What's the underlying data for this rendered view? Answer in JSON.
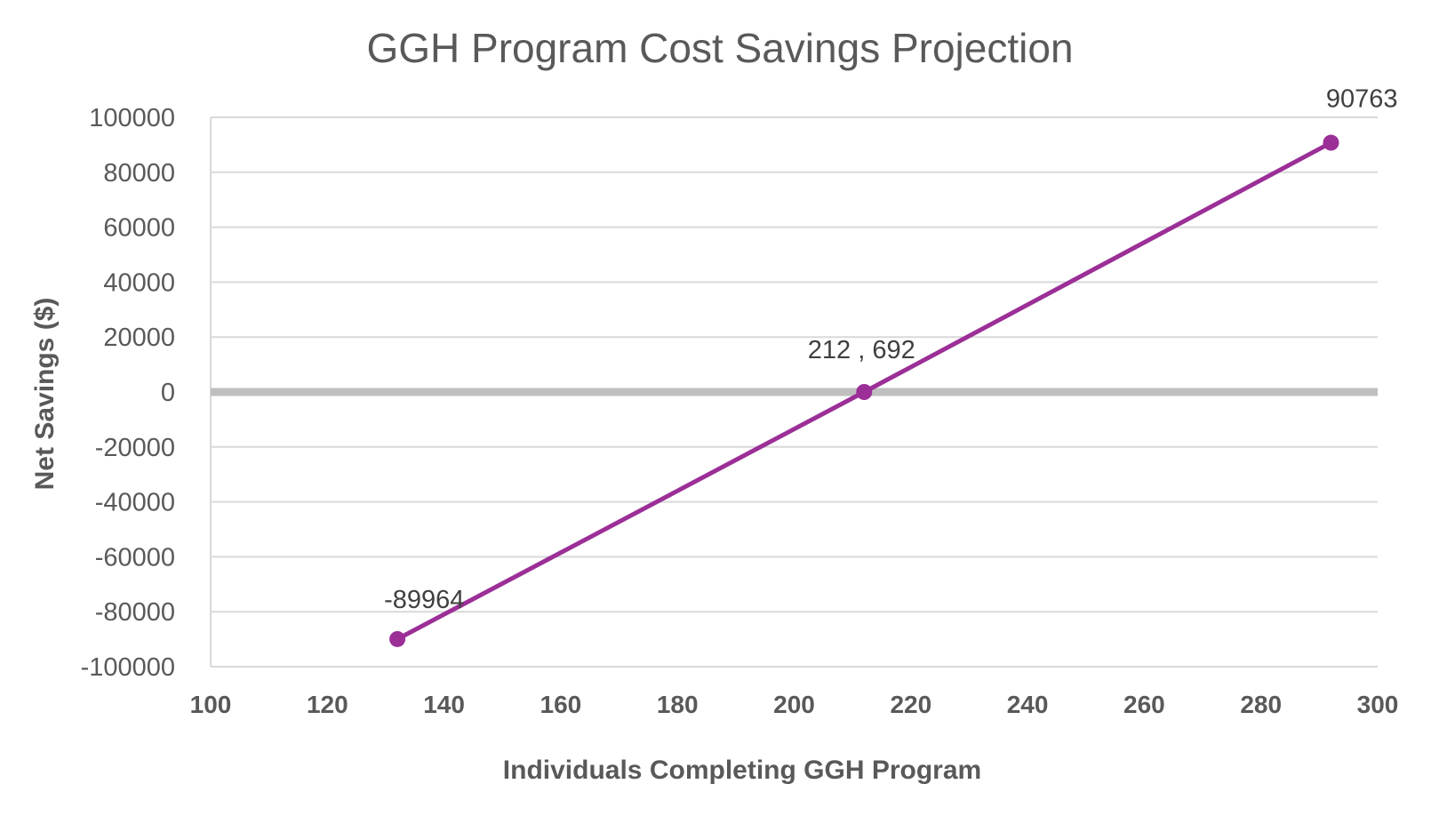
{
  "chart_data": {
    "type": "line",
    "title": "GGH Program Cost Savings Projection",
    "xlabel": "Individuals Completing GGH Program",
    "ylabel": "Net Savings ($)",
    "xlim": [
      100,
      300
    ],
    "ylim": [
      -100000,
      100000
    ],
    "x_ticks": [
      100,
      120,
      140,
      160,
      180,
      200,
      220,
      240,
      260,
      280,
      300
    ],
    "y_ticks": [
      100000,
      80000,
      60000,
      40000,
      20000,
      0,
      -20000,
      -40000,
      -60000,
      -80000,
      -100000
    ],
    "x_tick_labels": [
      "100",
      "120",
      "140",
      "160",
      "180",
      "200",
      "220",
      "240",
      "260",
      "280",
      "300"
    ],
    "y_tick_labels": [
      "100000",
      "80000",
      "60000",
      "40000",
      "20000",
      "0",
      "-20000",
      "-40000",
      "-60000",
      "-80000",
      "-100000"
    ],
    "grid": true,
    "series": [
      {
        "name": "Net Savings",
        "color": "#9b2f97",
        "points": [
          {
            "x": 132,
            "y": -89964,
            "label": "-89964"
          },
          {
            "x": 212,
            "y": 0,
            "label": "212 , 692"
          },
          {
            "x": 292,
            "y": 90763,
            "label": "90763"
          }
        ]
      }
    ]
  }
}
